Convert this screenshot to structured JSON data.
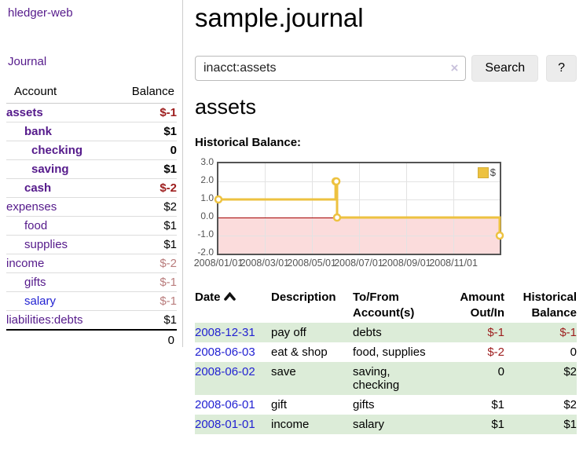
{
  "sidebar": {
    "app_title": "hledger-web",
    "nav": {
      "journal": "Journal"
    },
    "accounts": {
      "headers": {
        "account": "Account",
        "balance": "Balance"
      },
      "rows": [
        {
          "name": "assets",
          "indent": 0,
          "balance": "$-1",
          "bold": true,
          "negative": true
        },
        {
          "name": "bank",
          "indent": 1,
          "balance": "$1",
          "bold": true,
          "negative": false
        },
        {
          "name": "checking",
          "indent": 2,
          "balance": "0",
          "bold": true,
          "negative": false
        },
        {
          "name": "saving",
          "indent": 2,
          "balance": "$1",
          "bold": true,
          "negative": false
        },
        {
          "name": "cash",
          "indent": 1,
          "balance": "$-2",
          "bold": true,
          "negative": true
        },
        {
          "name": "expenses",
          "indent": 0,
          "balance": "$2",
          "bold": false,
          "negative": false
        },
        {
          "name": "food",
          "indent": 1,
          "balance": "$1",
          "bold": false,
          "negative": false
        },
        {
          "name": "supplies",
          "indent": 1,
          "balance": "$1",
          "bold": false,
          "negative": false
        },
        {
          "name": "income",
          "indent": 0,
          "balance": "$-2",
          "bold": false,
          "negative": true
        },
        {
          "name": "gifts",
          "indent": 1,
          "balance": "$-1",
          "bold": false,
          "negative": true
        },
        {
          "name": "salary",
          "indent": 1,
          "balance": "$-1",
          "bold": false,
          "negative": true,
          "link_color": "blue"
        },
        {
          "name": "liabilities:debts",
          "indent": 0,
          "balance": "$1",
          "bold": false,
          "negative": false
        }
      ],
      "total": "0"
    }
  },
  "header": {
    "title": "sample.journal"
  },
  "search": {
    "value": "inacct:assets",
    "clear_icon": "×",
    "search_label": "Search",
    "help_label": "?"
  },
  "account_page": {
    "heading": "assets",
    "chart_label": "Historical Balance:"
  },
  "chart_data": {
    "type": "line",
    "title": "Historical Balance",
    "legend": "$",
    "legend_position": "top-right",
    "grid": true,
    "step": true,
    "xlim": [
      "2008/01/01",
      "2008/12/31"
    ],
    "ylim": [
      -2,
      3
    ],
    "y_ticks": [
      "3.0",
      "2.0",
      "1.0",
      "0.0",
      "-1.0",
      "-2.0"
    ],
    "x_ticks": [
      "2008/01/01",
      "2008/03/01",
      "2008/05/01",
      "2008/07/01",
      "2008/09/01",
      "2008/11/01"
    ],
    "series": [
      {
        "name": "$",
        "color": "#edc240",
        "points": [
          [
            "2008/01/01",
            1
          ],
          [
            "2008/06/01",
            2
          ],
          [
            "2008/06/02",
            2
          ],
          [
            "2008/06/03",
            0
          ],
          [
            "2008/12/31",
            -1
          ]
        ]
      }
    ],
    "negative_region_color": "#fbdcdc",
    "zero_line_color": "#a40000",
    "border_color": "#545454"
  },
  "transactions": {
    "headers": {
      "date": "Date",
      "description": "Description",
      "tofrom": "To/From Account(s)",
      "amount": "Amount Out/In",
      "balance": "Historical Balance"
    },
    "sort": {
      "column": "date",
      "direction": "ascending"
    },
    "rows": [
      {
        "date": "2008-12-31",
        "description": "pay off",
        "accounts": "debts",
        "amount": "$-1",
        "balance": "$-1"
      },
      {
        "date": "2008-06-03",
        "description": "eat & shop",
        "accounts": "food, supplies",
        "amount": "$-2",
        "balance": "0"
      },
      {
        "date": "2008-06-02",
        "description": "save",
        "accounts": "saving, checking",
        "amount": "0",
        "balance": "$2"
      },
      {
        "date": "2008-06-01",
        "description": "gift",
        "accounts": "gifts",
        "amount": "$1",
        "balance": "$2"
      },
      {
        "date": "2008-01-01",
        "description": "income",
        "accounts": "salary",
        "amount": "$1",
        "balance": "$1"
      }
    ]
  }
}
